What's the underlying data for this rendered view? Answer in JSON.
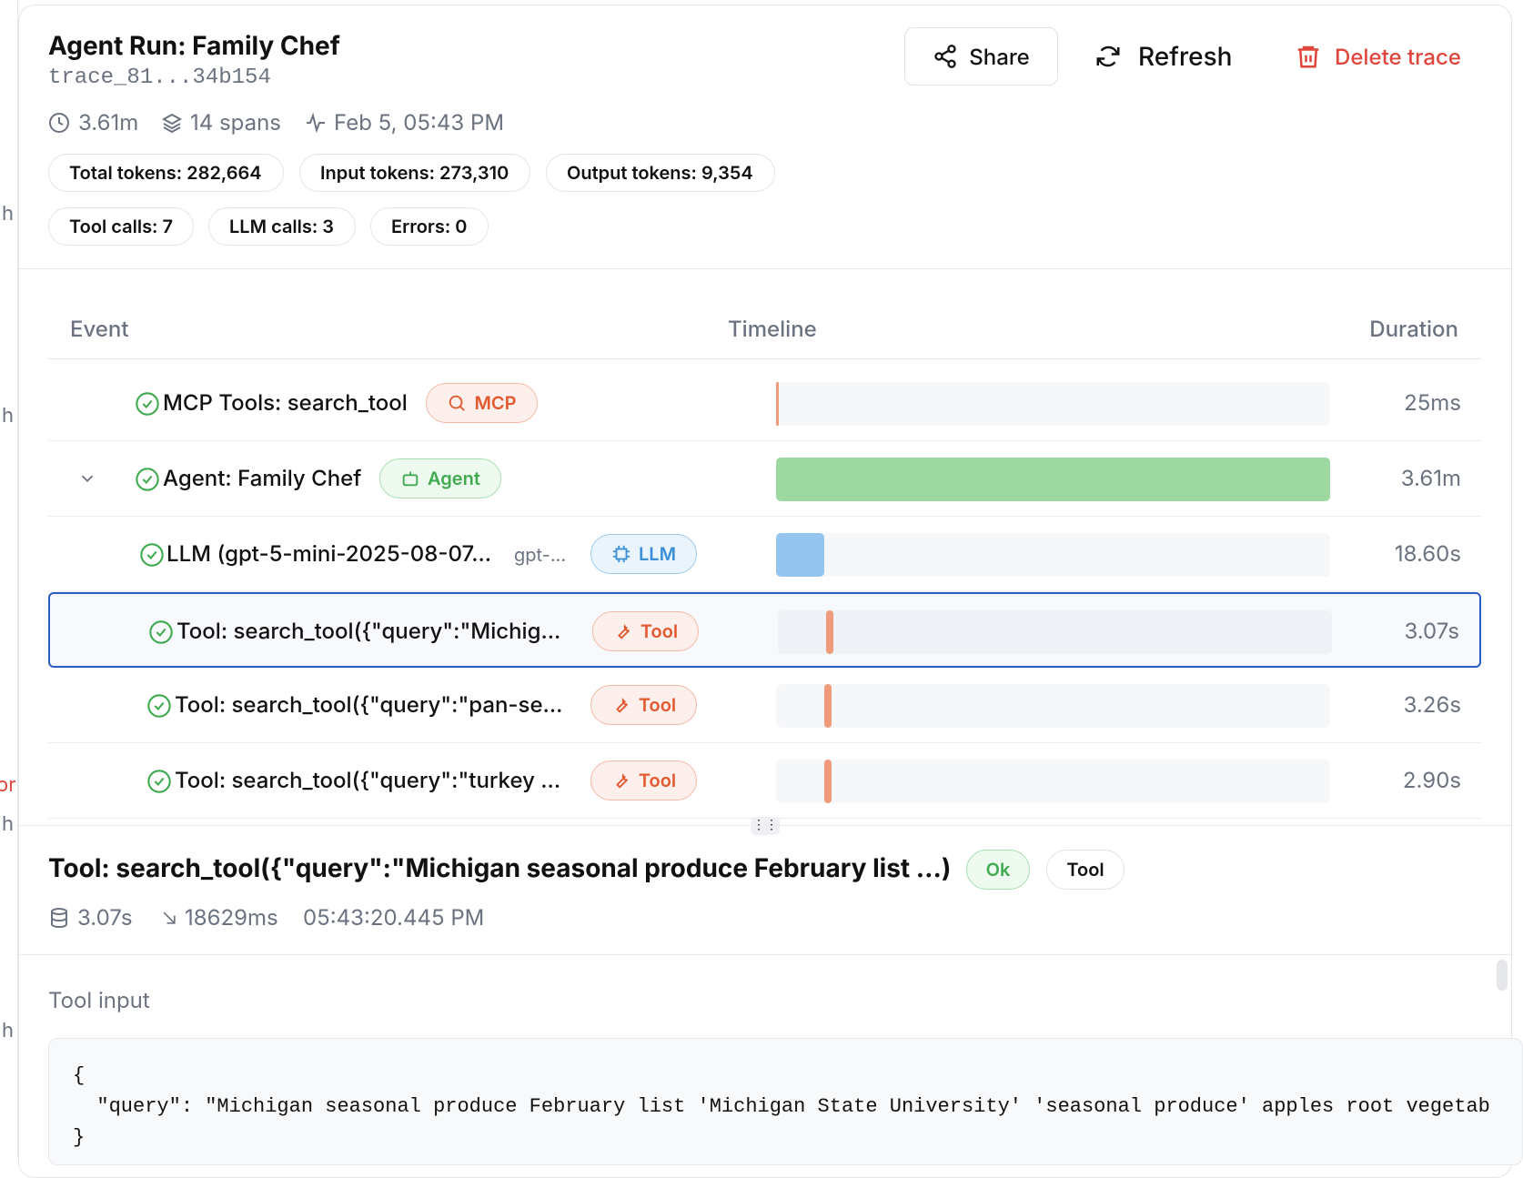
{
  "header": {
    "title": "Agent Run: Family Chef",
    "trace_id": "trace_81...34b154",
    "duration": "3.61m",
    "spans": "14 spans",
    "started": "Feb 5, 05:43 PM",
    "stats": [
      "Total tokens: 282,664",
      "Input tokens: 273,310",
      "Output tokens: 9,354",
      "Tool calls: 7",
      "LLM calls: 3",
      "Errors: 0"
    ],
    "actions": [
      "Share",
      "Refresh",
      "Delete trace"
    ]
  },
  "sidebar": [
    "h",
    "h",
    "or",
    "h",
    "h"
  ],
  "table": {
    "columns": [
      "Event",
      "Timeline",
      "Duration"
    ],
    "rows": [
      {
        "name": "MCP Tools: search_tool",
        "badge": "MCP",
        "duration": "25ms"
      },
      {
        "name": "Agent: Family Chef",
        "badge": "Agent",
        "duration": "3.61m"
      },
      {
        "name": "LLM (gpt-5-mini-2025-08-07...",
        "model": "gpt-...",
        "badge": "LLM",
        "duration": "18.60s"
      },
      {
        "name": "Tool: search_tool({\"query\":\"Michig...",
        "badge": "Tool",
        "duration": "3.07s"
      },
      {
        "name": "Tool: search_tool({\"query\":\"pan-se...",
        "badge": "Tool",
        "duration": "3.26s"
      },
      {
        "name": "Tool: search_tool({\"query\":\"turkey ...",
        "badge": "Tool",
        "duration": "2.90s"
      }
    ]
  },
  "detail": {
    "title": "Tool: search_tool({\"query\":\"Michigan seasonal produce February list ...)",
    "status": "Ok",
    "kind": "Tool",
    "duration": "3.07s",
    "offset": "18629ms",
    "timestamp": "05:43:20.445 PM",
    "section": "Tool input",
    "code": [
      "{",
      "  \"query\": \"Michigan seasonal produce February list 'Michigan State University' 'seasonal produce' apples root vegetab",
      "}"
    ]
  }
}
